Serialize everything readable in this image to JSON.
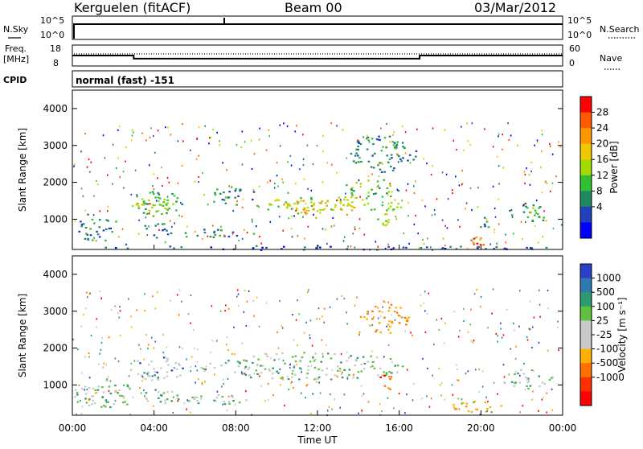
{
  "header": {
    "title": "Kerguelen (fitACF)",
    "beam": "Beam 00",
    "date": "03/Mar/2012"
  },
  "top_panels": {
    "nsky_label": "N.Sky",
    "nsearch_label": "N.Search",
    "freq_label_1": "Freq.",
    "freq_label_2": "[MHz]",
    "nave_label": "Nave",
    "cpid_label": "CPID",
    "cpid_text": "normal (fast) -151",
    "nsky_ticks": [
      "10^5",
      "10^0"
    ],
    "nsearch_ticks": [
      "10^5",
      "10^0"
    ],
    "freq_ticks": [
      "18",
      "8"
    ],
    "nave_ticks": [
      "60",
      "0"
    ]
  },
  "colorbars": {
    "power": {
      "label": "Power [dB]",
      "ticks": [
        "28",
        "24",
        "20",
        "16",
        "12",
        "8",
        "4"
      ],
      "colors": [
        "#ff0000",
        "#ff5a00",
        "#ff9600",
        "#f0c800",
        "#a0dc00",
        "#30c030",
        "#208860",
        "#2040c0",
        "#0000ff"
      ]
    },
    "velocity": {
      "label": "Velocity [m s⁻¹]",
      "ticks": [
        "1000",
        "500",
        "100",
        "25",
        "-25",
        "-100",
        "-500",
        "-1000"
      ],
      "colors": [
        "#2a40c8",
        "#2e7ab0",
        "#2e9a70",
        "#60c040",
        "#c8c8c8",
        "#c8c8c8",
        "#ffb000",
        "#ff7000",
        "#ff3000",
        "#ff0000"
      ]
    }
  },
  "chart_data": [
    {
      "type": "line",
      "name": "frequency-panel",
      "x_unit": "hours UT",
      "ylim": [
        8,
        18
      ],
      "points": [
        [
          0,
          13
        ],
        [
          3,
          13
        ],
        [
          3,
          11.5
        ],
        [
          17,
          11.5
        ],
        [
          17,
          13
        ],
        [
          24,
          13
        ]
      ]
    },
    {
      "type": "heatmap",
      "name": "power-panel",
      "xlabel": "",
      "ylabel": "Slant Range [km]",
      "ylim": [
        180,
        4500
      ],
      "yticks": [
        "1000",
        "2000",
        "3000",
        "4000"
      ],
      "blobs": [
        {
          "t0": 2.8,
          "t1": 5.4,
          "r0": 1100,
          "r1": 1800,
          "level": 3
        },
        {
          "t0": 3.0,
          "t1": 4.5,
          "r0": 1300,
          "r1": 1650,
          "level": 4
        },
        {
          "t0": 3.2,
          "t1": 5.2,
          "r0": 500,
          "r1": 900,
          "level": 2
        },
        {
          "t0": 5.0,
          "t1": 9.0,
          "r0": 500,
          "r1": 750,
          "level": 2
        },
        {
          "t0": 6.5,
          "t1": 9.0,
          "r0": 1400,
          "r1": 1900,
          "level": 2
        },
        {
          "t0": 9.0,
          "t1": 16.2,
          "r0": 1150,
          "r1": 1650,
          "level": 4
        },
        {
          "t0": 10.0,
          "t1": 14.0,
          "r0": 1250,
          "r1": 1550,
          "level": 5
        },
        {
          "t0": 13.0,
          "t1": 16.5,
          "r0": 1600,
          "r1": 2100,
          "level": 3
        },
        {
          "t0": 13.5,
          "t1": 16.8,
          "r0": 2300,
          "r1": 3300,
          "level": 2
        },
        {
          "t0": 14.8,
          "t1": 15.8,
          "r0": 850,
          "r1": 1400,
          "level": 4
        },
        {
          "t0": 19.2,
          "t1": 20.6,
          "r0": 250,
          "r1": 550,
          "level": 6
        },
        {
          "t0": 19.7,
          "t1": 20.3,
          "r0": 250,
          "r1": 400,
          "level": 8
        },
        {
          "t0": 19.9,
          "t1": 20.4,
          "r0": 700,
          "r1": 1100,
          "level": 2
        },
        {
          "t0": 21.2,
          "t1": 23.3,
          "r0": 900,
          "r1": 1450,
          "level": 3
        },
        {
          "t0": 0.2,
          "t1": 2.2,
          "r0": 400,
          "r1": 1200,
          "level": 2
        },
        {
          "t0": 0.0,
          "t1": 24.0,
          "r0": 180,
          "r1": 300,
          "level": 1
        }
      ]
    },
    {
      "type": "heatmap",
      "name": "velocity-panel",
      "xlabel": "Time UT",
      "ylabel": "Slant Range [km]",
      "ylim": [
        180,
        4500
      ],
      "yticks": [
        "1000",
        "2000",
        "3000",
        "4000"
      ],
      "xticks": [
        "00:00",
        "04:00",
        "08:00",
        "12:00",
        "16:00",
        "20:00",
        "00:00"
      ],
      "blobs": [
        {
          "t0": 2.8,
          "t1": 5.4,
          "r0": 1100,
          "r1": 1800,
          "level": 0
        },
        {
          "t0": 3.0,
          "t1": 4.5,
          "r0": 1150,
          "r1": 1400,
          "level": 3
        },
        {
          "t0": 3.2,
          "t1": 5.2,
          "r0": 500,
          "r1": 900,
          "level": 4
        },
        {
          "t0": 6.0,
          "t1": 16.5,
          "r0": 1150,
          "r1": 1900,
          "level": 4
        },
        {
          "t0": 5.0,
          "t1": 9.0,
          "r0": 500,
          "r1": 750,
          "level": 4
        },
        {
          "t0": 14.0,
          "t1": 16.5,
          "r0": 2400,
          "r1": 3300,
          "level": 7
        },
        {
          "t0": 14.8,
          "t1": 15.8,
          "r0": 850,
          "r1": 1300,
          "level": 8
        },
        {
          "t0": 18.5,
          "t1": 21.0,
          "r0": 250,
          "r1": 600,
          "level": 6
        },
        {
          "t0": 21.0,
          "t1": 23.5,
          "r0": 900,
          "r1": 1450,
          "level": 4
        },
        {
          "t0": 0.0,
          "t1": 3.0,
          "r0": 300,
          "r1": 1200,
          "level": 4
        }
      ]
    }
  ]
}
